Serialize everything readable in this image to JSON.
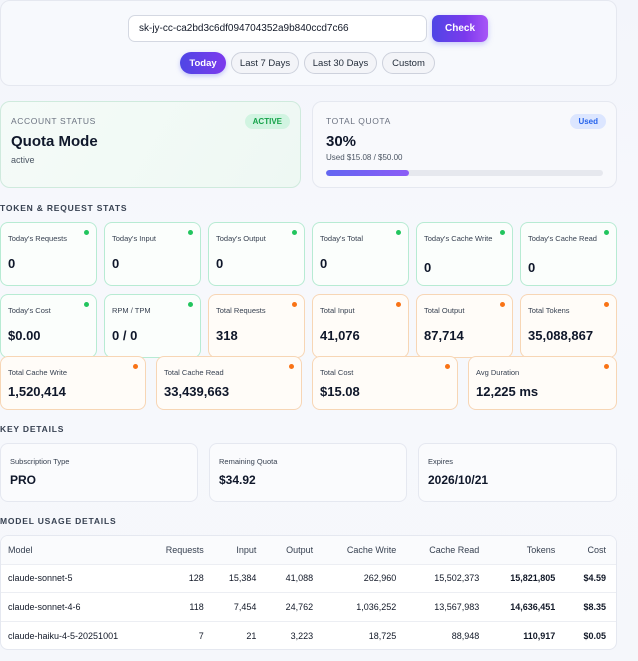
{
  "key_input": {
    "value": "sk-jy-cc-ca2bd3c6df094704352a9b840ccd7c66"
  },
  "check_label": "Check",
  "ranges": [
    "Today",
    "Last 7 Days",
    "Last 30 Days",
    "Custom"
  ],
  "account": {
    "label": "ACCOUNT STATUS",
    "badge": "ACTIVE",
    "mode": "Quota Mode",
    "status": "active"
  },
  "quota": {
    "label": "TOTAL QUOTA",
    "badge": "Used",
    "percent": "30%",
    "percent_value": 30,
    "used_text": "Used $15.08 / $50.00"
  },
  "sections": {
    "stats": "TOKEN & REQUEST STATS",
    "key_details": "KEY DETAILS",
    "model_usage": "MODEL USAGE DETAILS"
  },
  "stats": [
    {
      "label": "Today's Requests",
      "value": "0",
      "tone": "green"
    },
    {
      "label": "Today's Input",
      "value": "0",
      "tone": "green"
    },
    {
      "label": "Today's Output",
      "value": "0",
      "tone": "green"
    },
    {
      "label": "Today's Total",
      "value": "0",
      "tone": "green"
    },
    {
      "label": "Today's Cache Write",
      "value": "0",
      "tone": "green"
    },
    {
      "label": "Today's Cache Read",
      "value": "0",
      "tone": "green"
    },
    {
      "label": "Today's Cost",
      "value": "$0.00",
      "tone": "green"
    },
    {
      "label": "RPM / TPM",
      "value": "0 / 0",
      "tone": "green"
    },
    {
      "label": "Total Requests",
      "value": "318",
      "tone": "orange"
    },
    {
      "label": "Total Input",
      "value": "41,076",
      "tone": "orange"
    },
    {
      "label": "Total Output",
      "value": "87,714",
      "tone": "orange"
    },
    {
      "label": "Total Tokens",
      "value": "35,088,867",
      "tone": "orange"
    },
    {
      "label": "Total Cache Write",
      "value": "1,520,414",
      "tone": "orange"
    },
    {
      "label": "Total Cache Read",
      "value": "33,439,663",
      "tone": "orange"
    },
    {
      "label": "Total Cost",
      "value": "$15.08",
      "tone": "orange"
    },
    {
      "label": "Avg Duration",
      "value": "12,225 ms",
      "tone": "orange"
    }
  ],
  "details": [
    {
      "label": "Subscription Type",
      "value": "PRO"
    },
    {
      "label": "Remaining Quota",
      "value": "$34.92"
    },
    {
      "label": "Expires",
      "value": "2026/10/21"
    }
  ],
  "table": {
    "headers": [
      "Model",
      "Requests",
      "Input",
      "Output",
      "Cache Write",
      "Cache Read",
      "Tokens",
      "Cost"
    ],
    "rows": [
      [
        "claude-sonnet-5",
        "128",
        "15,384",
        "41,088",
        "262,960",
        "15,502,373",
        "15,821,805",
        "$4.59"
      ],
      [
        "claude-sonnet-4-6",
        "118",
        "7,454",
        "24,762",
        "1,036,252",
        "13,567,983",
        "14,636,451",
        "$8.35"
      ],
      [
        "claude-haiku-4-5-20251001",
        "7",
        "21",
        "3,223",
        "18,725",
        "88,948",
        "110,917",
        "$0.05"
      ]
    ]
  },
  "colors": {
    "accent": "#6366f1",
    "green": "#22c55e",
    "orange": "#f97316"
  }
}
